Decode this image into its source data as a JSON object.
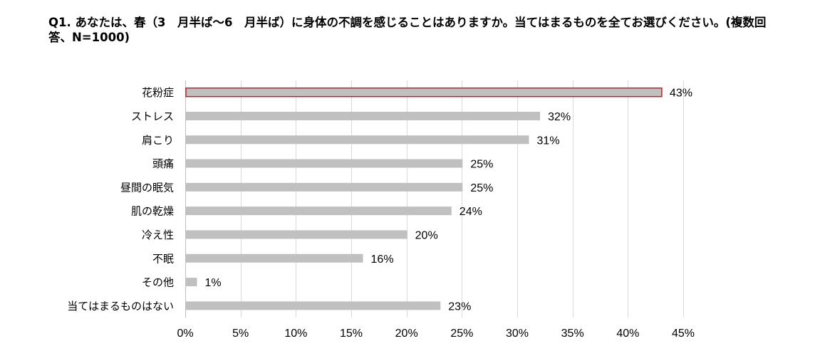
{
  "title": "Q1. あなたは、春（3　月半ば～6　月半ば）に身体の不調を感じることはありますか。当てはまるものを全てお選びください。(複数回答、N=1000)",
  "chart_data": {
    "type": "bar",
    "orientation": "horizontal",
    "categories": [
      "花粉症",
      "ストレス",
      "肩こり",
      "頭痛",
      "昼間の眠気",
      "肌の乾燥",
      "冷え性",
      "不眠",
      "その他",
      "当てはまるものはない"
    ],
    "values": [
      43,
      32,
      31,
      25,
      25,
      24,
      20,
      16,
      1,
      23
    ],
    "value_labels": [
      "43%",
      "32%",
      "31%",
      "25%",
      "25%",
      "24%",
      "20%",
      "16%",
      "1%",
      "23%"
    ],
    "xlim": [
      0,
      45
    ],
    "xticks": [
      0,
      5,
      10,
      15,
      20,
      25,
      30,
      35,
      40,
      45
    ],
    "xtick_labels": [
      "0%",
      "5%",
      "10%",
      "15%",
      "20%",
      "25%",
      "30%",
      "35%",
      "40%",
      "45%"
    ],
    "grid": true,
    "bar_color": "#c0c0c0",
    "highlight_index": 0,
    "highlight_border_color": "#c0202a",
    "grid_color": "#d9d9d9"
  }
}
